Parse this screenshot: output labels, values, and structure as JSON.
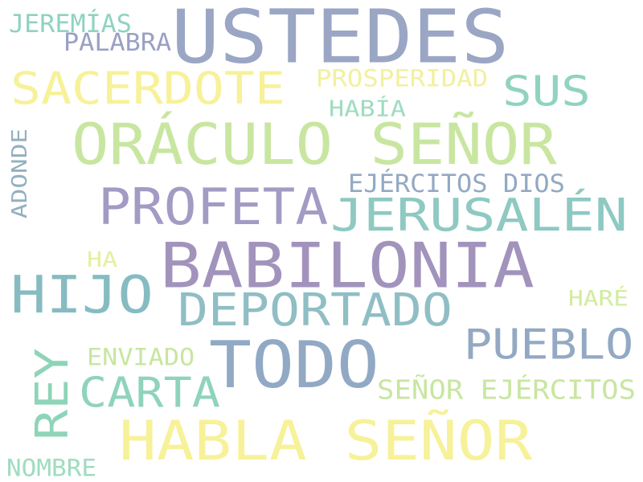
{
  "words": [
    {
      "text": "USTEDES",
      "color": "#9aa6c4"
    },
    {
      "text": "ORÁCULO SEÑOR",
      "color": "#c8e6a0"
    },
    {
      "text": "BABILONIA",
      "color": "#a293bd"
    },
    {
      "text": "TODO",
      "color": "#91a9c4"
    },
    {
      "text": "HABLA SEÑOR",
      "color": "#f7f199"
    },
    {
      "text": "JERUSALÉN",
      "color": "#8ec9c2"
    },
    {
      "text": "PROFETA",
      "color": "#a49bc4"
    },
    {
      "text": "SACERDOTE",
      "color": "#f7f199"
    },
    {
      "text": "HIJO",
      "color": "#86bcc1"
    },
    {
      "text": "DEPORTADO",
      "color": "#8fbec4"
    },
    {
      "text": "CARTA",
      "color": "#8fd3bc"
    },
    {
      "text": "PUEBLO",
      "color": "#93a9c3"
    },
    {
      "text": "REY",
      "color": "#8ed4b8"
    },
    {
      "text": "SUS",
      "color": "#8fd3c0"
    },
    {
      "text": "SEÑOR EJÉRCITOS",
      "color": "#c8e6a0"
    },
    {
      "text": "EJÉRCITOS DIOS",
      "color": "#93a9c3"
    },
    {
      "text": "PROSPERIDAD",
      "color": "#f2f0a0"
    },
    {
      "text": "JEREMÍAS",
      "color": "#8fd3c0"
    },
    {
      "text": "PALABRA",
      "color": "#9aa0c4"
    },
    {
      "text": "HABÍA",
      "color": "#9fdcc0"
    },
    {
      "text": "ENVIADO",
      "color": "#c8e6a0"
    },
    {
      "text": "NOMBRE",
      "color": "#9fdcc0"
    },
    {
      "text": "ADONDE",
      "color": "#93b0c0"
    },
    {
      "text": "HA",
      "color": "#e6ef9e"
    },
    {
      "text": "HARÉ",
      "color": "#d3ec9e"
    }
  ]
}
